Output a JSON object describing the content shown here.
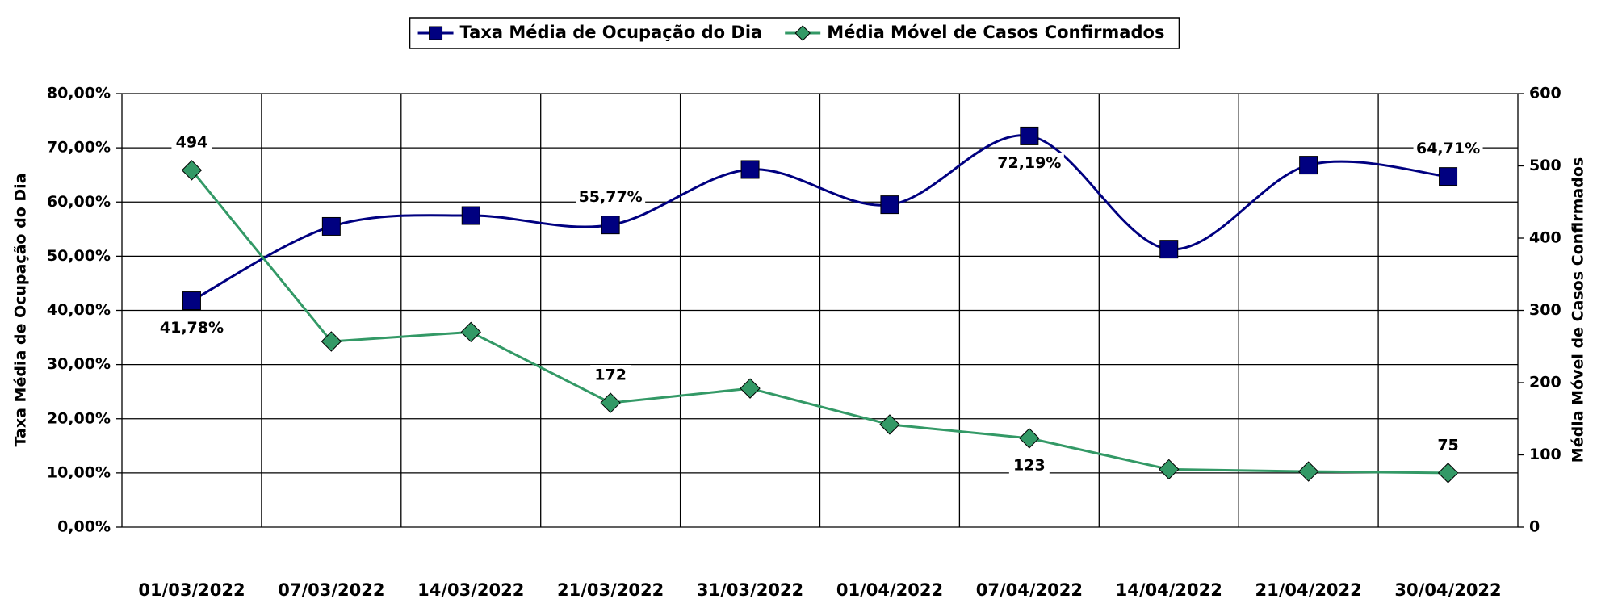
{
  "chart_data": {
    "type": "line",
    "categories": [
      "01/03/2022",
      "07/03/2022",
      "14/03/2022",
      "21/03/2022",
      "31/03/2022",
      "01/04/2022",
      "07/04/2022",
      "14/04/2022",
      "21/04/2022",
      "30/04/2022"
    ],
    "series": [
      {
        "name": "Taxa Média de Ocupação do Dia",
        "color": "#000080",
        "marker": "square",
        "smooth": true,
        "values": [
          41.78,
          55.5,
          57.5,
          55.77,
          66.0,
          59.5,
          72.19,
          51.3,
          66.8,
          64.71
        ],
        "value_labels": [
          "41,78%",
          null,
          null,
          "55,77%",
          null,
          null,
          "72,19%",
          null,
          null,
          "64,71%"
        ]
      },
      {
        "name": "Média Móvel de Casos Confirmados",
        "color": "#339966",
        "marker": "diamond",
        "axis": "y2",
        "values": [
          494,
          257,
          270,
          172,
          192,
          142,
          123,
          80,
          77,
          75
        ],
        "value_labels": [
          "494",
          null,
          null,
          "172",
          null,
          null,
          "123",
          null,
          null,
          "75"
        ]
      }
    ],
    "ylabel": "Taxa Média de Ocupação do Dia",
    "y2label": "Média Móvel de Casos Confirmados",
    "ylim": [
      0,
      80
    ],
    "yticks": [
      {
        "value": 0,
        "label": "0,00%"
      },
      {
        "value": 10,
        "label": "10,00%"
      },
      {
        "value": 20,
        "label": "20,00%"
      },
      {
        "value": 30,
        "label": "30,00%"
      },
      {
        "value": 40,
        "label": "40,00%"
      },
      {
        "value": 50,
        "label": "50,00%"
      },
      {
        "value": 60,
        "label": "60,00%"
      },
      {
        "value": 70,
        "label": "70,00%"
      },
      {
        "value": 80,
        "label": "80,00%"
      }
    ],
    "y2lim": [
      0,
      600
    ],
    "y2ticks": [
      0,
      100,
      200,
      300,
      400,
      500,
      600
    ],
    "grid": true,
    "legend": "top"
  }
}
